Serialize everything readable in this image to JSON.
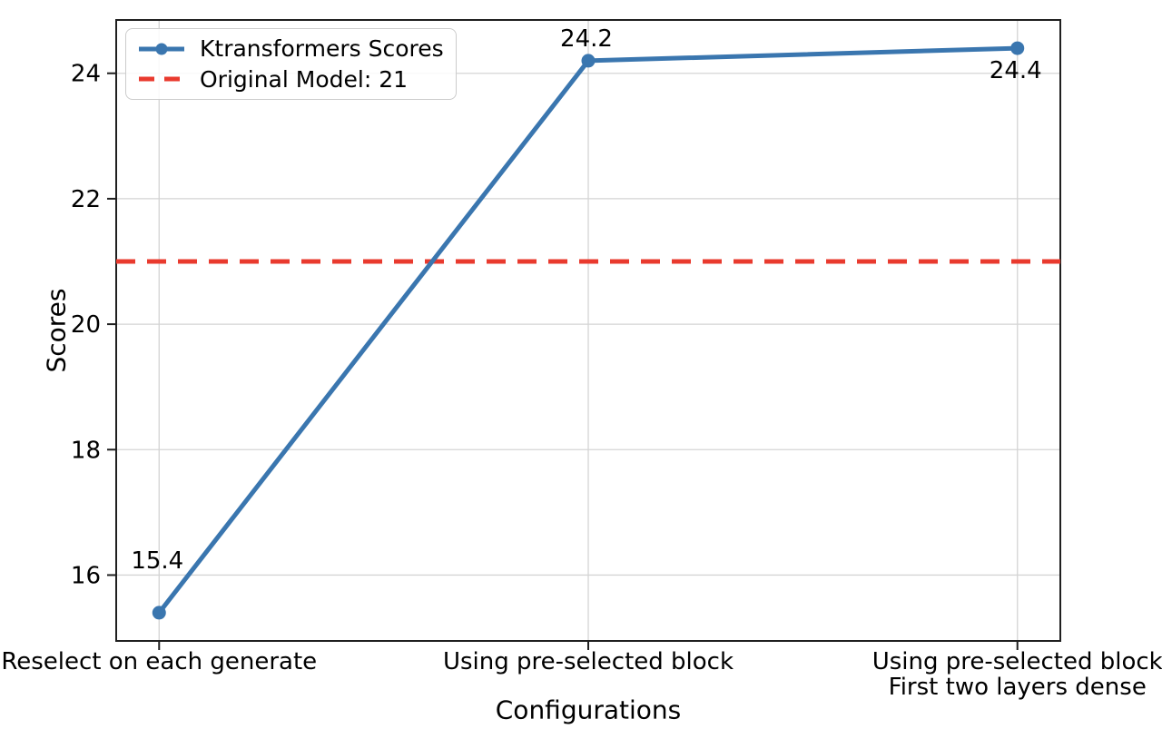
{
  "chart_data": {
    "type": "line",
    "xlabel": "Configurations",
    "ylabel": "Scores",
    "categories": [
      "Reselect on each generate",
      "Using pre-selected block",
      "Using pre-selected block\nFirst two layers dense"
    ],
    "series": [
      {
        "name": "Ktransformers Scores",
        "values": [
          15.4,
          24.2,
          24.4
        ],
        "color": "#3a76af"
      }
    ],
    "point_labels": [
      "15.4",
      "24.2",
      "24.4"
    ],
    "reference_line": {
      "label": "Original Model: 21",
      "value": 21,
      "color": "#e93a2e",
      "style": "dashed"
    },
    "yticks": [
      16,
      18,
      20,
      22,
      24
    ],
    "ylim": [
      14.95,
      24.85
    ],
    "grid": true,
    "legend_position": "upper-left",
    "style": {
      "grid_color": "#d4d4d4",
      "spine_color": "#1f1f1f",
      "text_color": "#000000",
      "background": "#ffffff"
    }
  }
}
